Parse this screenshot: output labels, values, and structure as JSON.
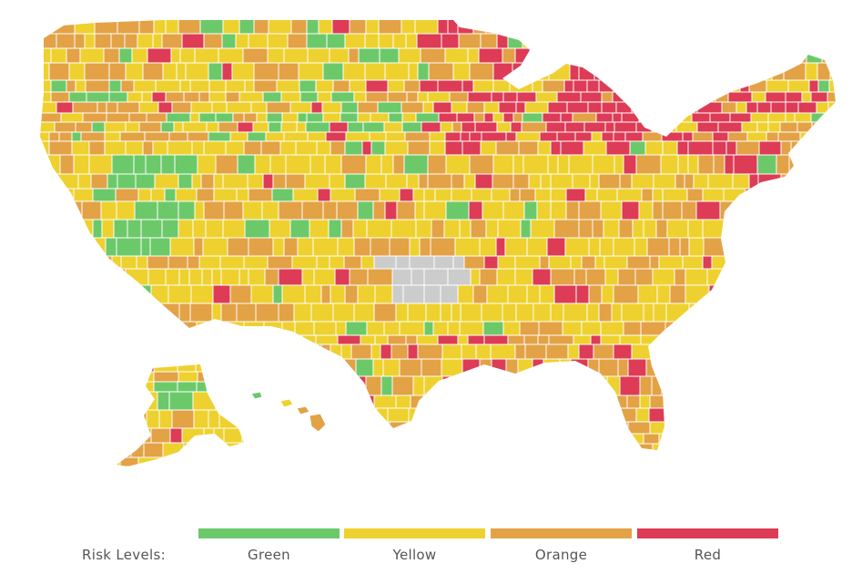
{
  "legend": {
    "title": "Risk Levels:",
    "levels": [
      {
        "label": "Green",
        "color": "#6cc96a"
      },
      {
        "label": "Yellow",
        "color": "#eed12e"
      },
      {
        "label": "Orange",
        "color": "#e3a246"
      },
      {
        "label": "Red",
        "color": "#dd3b56"
      }
    ],
    "no_data_color": "#cccccc"
  },
  "map": {
    "regions": [
      "contiguous-us",
      "alaska",
      "hawaii"
    ]
  }
}
